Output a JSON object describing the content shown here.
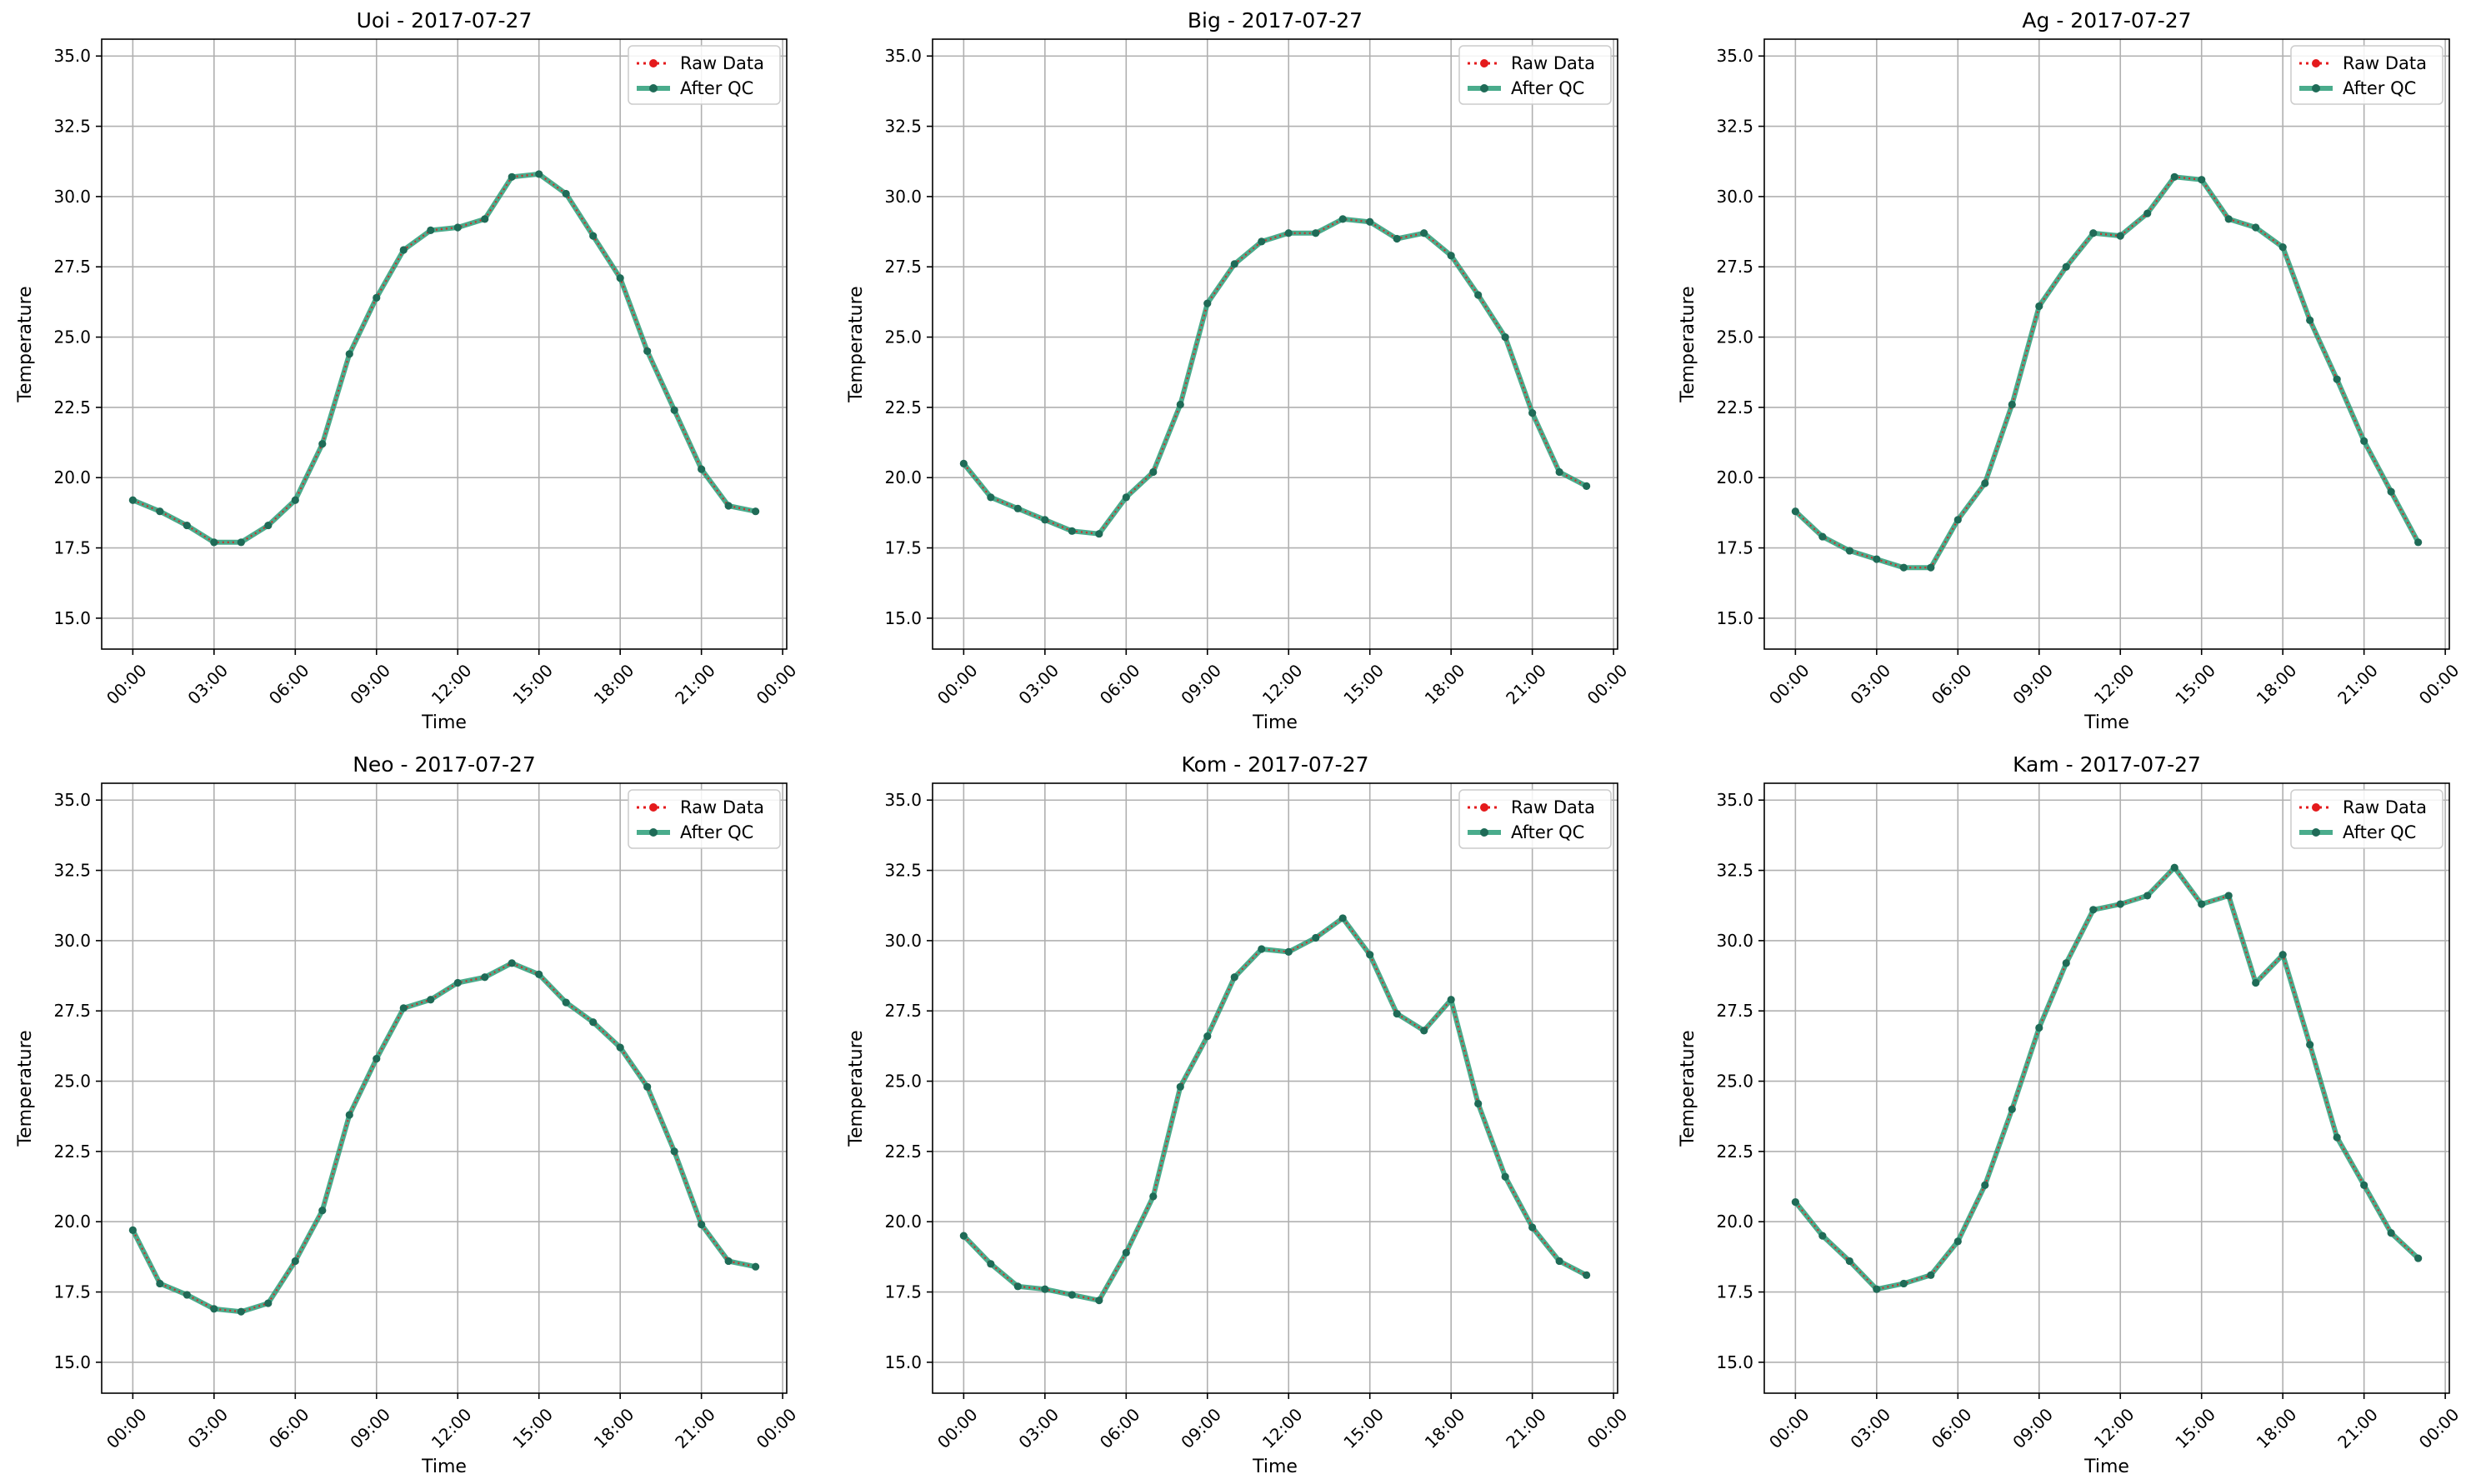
{
  "legend": {
    "raw_label": "Raw Data",
    "qc_label": "After QC",
    "position": "upper-right"
  },
  "colors": {
    "raw": "#e41a1c",
    "qc": "#2a9d78",
    "grid": "#b0b0b0",
    "axis": "#000000"
  },
  "chart_data": [
    {
      "type": "line",
      "title": "Uoi - 2017-07-27",
      "xlabel": "Time",
      "ylabel": "Temperature",
      "ylim": [
        13.9,
        35.6
      ],
      "yticks": [
        "15.0",
        "17.5",
        "20.0",
        "22.5",
        "25.0",
        "27.5",
        "30.0",
        "32.5",
        "35.0"
      ],
      "xticks": [
        "00:00",
        "03:00",
        "06:00",
        "09:00",
        "12:00",
        "15:00",
        "18:00",
        "21:00",
        "00:00"
      ],
      "grid": true,
      "x_hours": [
        0,
        1,
        2,
        3,
        4,
        5,
        6,
        7,
        8,
        9,
        10,
        11,
        12,
        13,
        14,
        15,
        16,
        17,
        18,
        19,
        20,
        21,
        22,
        23
      ],
      "series": [
        {
          "name": "Raw Data",
          "values": [
            19.2,
            18.8,
            18.3,
            17.7,
            17.7,
            18.3,
            19.2,
            21.2,
            24.4,
            26.4,
            28.1,
            28.8,
            28.9,
            29.2,
            30.7,
            30.8,
            30.1,
            28.6,
            27.1,
            24.5,
            22.4,
            20.3,
            19.0,
            18.8
          ]
        },
        {
          "name": "After QC",
          "values": [
            19.2,
            18.8,
            18.3,
            17.7,
            17.7,
            18.3,
            19.2,
            21.2,
            24.4,
            26.4,
            28.1,
            28.8,
            28.9,
            29.2,
            30.7,
            30.8,
            30.1,
            28.6,
            27.1,
            24.5,
            22.4,
            20.3,
            19.0,
            18.8
          ]
        }
      ]
    },
    {
      "type": "line",
      "title": "Big - 2017-07-27",
      "xlabel": "Time",
      "ylabel": "Temperature",
      "ylim": [
        13.9,
        35.6
      ],
      "yticks": [
        "15.0",
        "17.5",
        "20.0",
        "22.5",
        "25.0",
        "27.5",
        "30.0",
        "32.5",
        "35.0"
      ],
      "xticks": [
        "00:00",
        "03:00",
        "06:00",
        "09:00",
        "12:00",
        "15:00",
        "18:00",
        "21:00",
        "00:00"
      ],
      "grid": true,
      "x_hours": [
        0,
        1,
        2,
        3,
        4,
        5,
        6,
        7,
        8,
        9,
        10,
        11,
        12,
        13,
        14,
        15,
        16,
        17,
        18,
        19,
        20,
        21,
        22,
        23
      ],
      "series": [
        {
          "name": "Raw Data",
          "values": [
            20.5,
            19.3,
            18.9,
            18.5,
            18.1,
            18.0,
            19.3,
            20.2,
            22.6,
            26.2,
            27.6,
            28.4,
            28.7,
            28.7,
            29.2,
            29.1,
            28.5,
            28.7,
            27.9,
            26.5,
            25.0,
            22.3,
            20.2,
            19.7
          ]
        },
        {
          "name": "After QC",
          "values": [
            20.5,
            19.3,
            18.9,
            18.5,
            18.1,
            18.0,
            19.3,
            20.2,
            22.6,
            26.2,
            27.6,
            28.4,
            28.7,
            28.7,
            29.2,
            29.1,
            28.5,
            28.7,
            27.9,
            26.5,
            25.0,
            22.3,
            20.2,
            19.7
          ]
        }
      ]
    },
    {
      "type": "line",
      "title": "Ag - 2017-07-27",
      "xlabel": "Time",
      "ylabel": "Temperature",
      "ylim": [
        13.9,
        35.6
      ],
      "yticks": [
        "15.0",
        "17.5",
        "20.0",
        "22.5",
        "25.0",
        "27.5",
        "30.0",
        "32.5",
        "35.0"
      ],
      "xticks": [
        "00:00",
        "03:00",
        "06:00",
        "09:00",
        "12:00",
        "15:00",
        "18:00",
        "21:00",
        "00:00"
      ],
      "grid": true,
      "x_hours": [
        0,
        1,
        2,
        3,
        4,
        5,
        6,
        7,
        8,
        9,
        10,
        11,
        12,
        13,
        14,
        15,
        16,
        17,
        18,
        19,
        20,
        21,
        22,
        23
      ],
      "series": [
        {
          "name": "Raw Data",
          "values": [
            18.8,
            17.9,
            17.4,
            17.1,
            16.8,
            16.8,
            18.5,
            19.8,
            22.6,
            26.1,
            27.5,
            28.7,
            28.6,
            29.4,
            30.7,
            30.6,
            29.2,
            28.9,
            28.2,
            25.6,
            23.5,
            21.3,
            19.5,
            17.7
          ]
        },
        {
          "name": "After QC",
          "values": [
            18.8,
            17.9,
            17.4,
            17.1,
            16.8,
            16.8,
            18.5,
            19.8,
            22.6,
            26.1,
            27.5,
            28.7,
            28.6,
            29.4,
            30.7,
            30.6,
            29.2,
            28.9,
            28.2,
            25.6,
            23.5,
            21.3,
            19.5,
            17.7
          ]
        }
      ]
    },
    {
      "type": "line",
      "title": "Neo - 2017-07-27",
      "xlabel": "Time",
      "ylabel": "Temperature",
      "ylim": [
        13.9,
        35.6
      ],
      "yticks": [
        "15.0",
        "17.5",
        "20.0",
        "22.5",
        "25.0",
        "27.5",
        "30.0",
        "32.5",
        "35.0"
      ],
      "xticks": [
        "00:00",
        "03:00",
        "06:00",
        "09:00",
        "12:00",
        "15:00",
        "18:00",
        "21:00",
        "00:00"
      ],
      "grid": true,
      "x_hours": [
        0,
        1,
        2,
        3,
        4,
        5,
        6,
        7,
        8,
        9,
        10,
        11,
        12,
        13,
        14,
        15,
        16,
        17,
        18,
        19,
        20,
        21,
        22,
        23
      ],
      "series": [
        {
          "name": "Raw Data",
          "values": [
            19.7,
            17.8,
            17.4,
            16.9,
            16.8,
            17.1,
            18.6,
            20.4,
            23.8,
            25.8,
            27.6,
            27.9,
            28.5,
            28.7,
            29.2,
            28.8,
            27.8,
            27.1,
            26.2,
            24.8,
            22.5,
            19.9,
            18.6,
            18.4
          ]
        },
        {
          "name": "After QC",
          "values": [
            19.7,
            17.8,
            17.4,
            16.9,
            16.8,
            17.1,
            18.6,
            20.4,
            23.8,
            25.8,
            27.6,
            27.9,
            28.5,
            28.7,
            29.2,
            28.8,
            27.8,
            27.1,
            26.2,
            24.8,
            22.5,
            19.9,
            18.6,
            18.4
          ]
        }
      ]
    },
    {
      "type": "line",
      "title": "Kom - 2017-07-27",
      "xlabel": "Time",
      "ylabel": "Temperature",
      "ylim": [
        13.9,
        35.6
      ],
      "yticks": [
        "15.0",
        "17.5",
        "20.0",
        "22.5",
        "25.0",
        "27.5",
        "30.0",
        "32.5",
        "35.0"
      ],
      "xticks": [
        "00:00",
        "03:00",
        "06:00",
        "09:00",
        "12:00",
        "15:00",
        "18:00",
        "21:00",
        "00:00"
      ],
      "grid": true,
      "x_hours": [
        0,
        1,
        2,
        3,
        4,
        5,
        6,
        7,
        8,
        9,
        10,
        11,
        12,
        13,
        14,
        15,
        16,
        17,
        18,
        19,
        20,
        21,
        22,
        23
      ],
      "series": [
        {
          "name": "Raw Data",
          "values": [
            19.5,
            18.5,
            17.7,
            17.6,
            17.4,
            17.2,
            18.9,
            20.9,
            24.8,
            26.6,
            28.7,
            29.7,
            29.6,
            30.1,
            30.8,
            29.5,
            27.4,
            26.8,
            27.9,
            24.2,
            21.6,
            19.8,
            18.6,
            18.1
          ]
        },
        {
          "name": "After QC",
          "values": [
            19.5,
            18.5,
            17.7,
            17.6,
            17.4,
            17.2,
            18.9,
            20.9,
            24.8,
            26.6,
            28.7,
            29.7,
            29.6,
            30.1,
            30.8,
            29.5,
            27.4,
            26.8,
            27.9,
            24.2,
            21.6,
            19.8,
            18.6,
            18.1
          ]
        }
      ]
    },
    {
      "type": "line",
      "title": "Kam - 2017-07-27",
      "xlabel": "Time",
      "ylabel": "Temperature",
      "ylim": [
        13.9,
        35.6
      ],
      "yticks": [
        "15.0",
        "17.5",
        "20.0",
        "22.5",
        "25.0",
        "27.5",
        "30.0",
        "32.5",
        "35.0"
      ],
      "xticks": [
        "00:00",
        "03:00",
        "06:00",
        "09:00",
        "12:00",
        "15:00",
        "18:00",
        "21:00",
        "00:00"
      ],
      "grid": true,
      "x_hours": [
        0,
        1,
        2,
        3,
        4,
        5,
        6,
        7,
        8,
        9,
        10,
        11,
        12,
        13,
        14,
        15,
        16,
        17,
        18,
        19,
        20,
        21,
        22,
        23
      ],
      "series": [
        {
          "name": "Raw Data",
          "values": [
            20.7,
            19.5,
            18.6,
            17.6,
            17.8,
            18.1,
            19.3,
            21.3,
            24.0,
            26.9,
            29.2,
            31.1,
            31.3,
            31.6,
            32.6,
            31.3,
            31.6,
            28.5,
            29.5,
            26.3,
            23.0,
            21.3,
            19.6,
            18.7
          ]
        },
        {
          "name": "After QC",
          "values": [
            20.7,
            19.5,
            18.6,
            17.6,
            17.8,
            18.1,
            19.3,
            21.3,
            24.0,
            26.9,
            29.2,
            31.1,
            31.3,
            31.6,
            32.6,
            31.3,
            31.6,
            28.5,
            29.5,
            26.3,
            23.0,
            21.3,
            19.6,
            18.7
          ]
        }
      ]
    }
  ]
}
